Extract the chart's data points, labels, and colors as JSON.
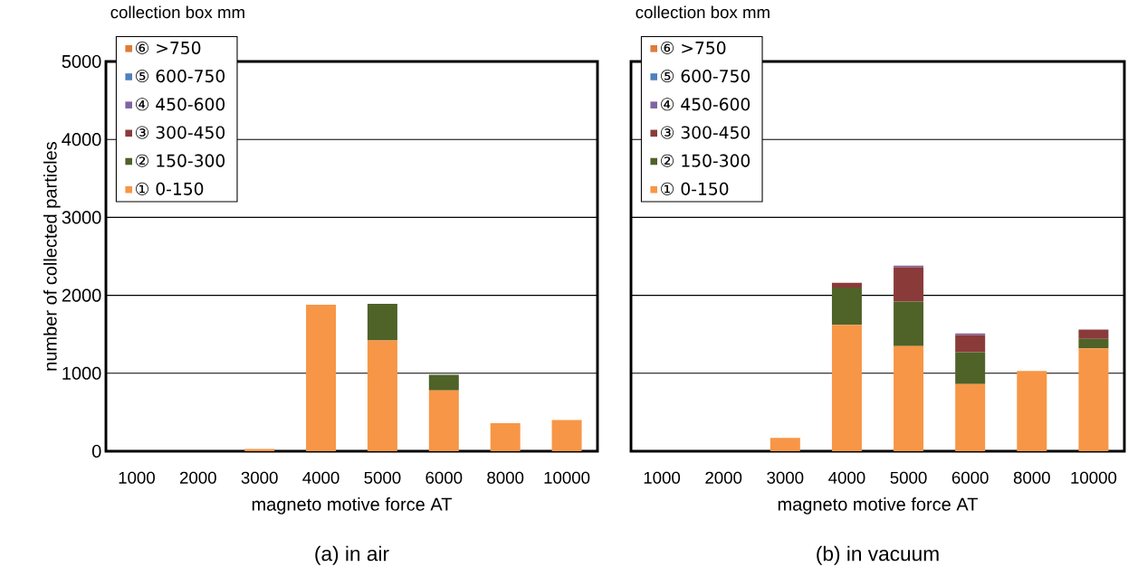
{
  "chart_data": [
    {
      "type": "bar",
      "stacked": true,
      "title": "(a) in air",
      "xlabel": "magneto motive force  AT",
      "ylabel": "number of collected particles",
      "legend_title": "collection box mm",
      "legend": "top left",
      "grid": "y",
      "categories": [
        "1000",
        "2000",
        "3000",
        "4000",
        "5000",
        "6000",
        "8000",
        "10000"
      ],
      "ylim": [
        0,
        5000
      ],
      "yticks": [
        0,
        1000,
        2000,
        3000,
        4000,
        5000
      ],
      "series": [
        {
          "name": "① 0-150",
          "color": "#f79646",
          "values": [
            0,
            0,
            30,
            1880,
            1420,
            780,
            360,
            400
          ]
        },
        {
          "name": "② 150-300",
          "color": "#4f6228",
          "values": [
            0,
            0,
            0,
            0,
            470,
            200,
            0,
            0
          ]
        },
        {
          "name": "③ 300-450",
          "color": "#8b3a3a",
          "values": [
            0,
            0,
            0,
            0,
            0,
            0,
            0,
            0
          ]
        },
        {
          "name": "④ 450-600",
          "color": "#8064a2",
          "values": [
            0,
            0,
            0,
            0,
            0,
            0,
            0,
            0
          ]
        },
        {
          "name": "⑤ 600-750",
          "color": "#4f81bd",
          "values": [
            0,
            0,
            0,
            0,
            0,
            0,
            0,
            0
          ]
        },
        {
          "name": "⑥ >750",
          "color": "#e07b39",
          "values": [
            0,
            0,
            0,
            0,
            0,
            0,
            0,
            0
          ]
        }
      ]
    },
    {
      "type": "bar",
      "stacked": true,
      "title": "(b) in vacuum",
      "xlabel": "magneto motive force  AT",
      "legend_title": "collection box mm",
      "legend": "top left",
      "grid": "y",
      "tick_labels": "x",
      "categories": [
        "1000",
        "2000",
        "3000",
        "4000",
        "5000",
        "6000",
        "8000",
        "10000"
      ],
      "ylim": [
        0,
        5000
      ],
      "yticks": [
        0,
        1000,
        2000,
        3000,
        4000,
        5000
      ],
      "series": [
        {
          "name": "① 0-150",
          "color": "#f79646",
          "values": [
            0,
            0,
            170,
            1620,
            1350,
            860,
            1030,
            1320
          ]
        },
        {
          "name": "② 150-300",
          "color": "#4f6228",
          "values": [
            0,
            0,
            0,
            480,
            570,
            410,
            0,
            120
          ]
        },
        {
          "name": "③ 300-450",
          "color": "#8b3a3a",
          "values": [
            0,
            0,
            0,
            60,
            440,
            220,
            0,
            120
          ]
        },
        {
          "name": "④ 450-600",
          "color": "#8064a2",
          "values": [
            0,
            0,
            0,
            0,
            20,
            20,
            0,
            0
          ]
        },
        {
          "name": "⑤ 600-750",
          "color": "#4f81bd",
          "values": [
            0,
            0,
            0,
            0,
            0,
            0,
            0,
            0
          ]
        },
        {
          "name": "⑥ >750",
          "color": "#e07b39",
          "values": [
            0,
            0,
            0,
            0,
            0,
            0,
            0,
            0
          ]
        }
      ]
    }
  ]
}
